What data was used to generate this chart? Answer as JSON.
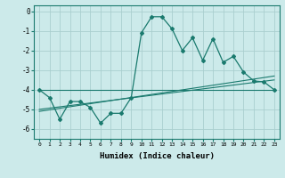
{
  "xlabel": "Humidex (Indice chaleur)",
  "x": [
    0,
    1,
    2,
    3,
    4,
    5,
    6,
    7,
    8,
    9,
    10,
    11,
    12,
    13,
    14,
    15,
    16,
    17,
    18,
    19,
    20,
    21,
    22,
    23
  ],
  "main_line": [
    -4.0,
    -4.4,
    -5.5,
    -4.6,
    -4.6,
    -4.9,
    -5.7,
    -5.2,
    -5.2,
    -4.4,
    -1.1,
    -0.28,
    -0.28,
    -0.9,
    -2.0,
    -1.35,
    -2.5,
    -1.4,
    -2.6,
    -2.3,
    -3.1,
    -3.55,
    -3.6,
    -4.0
  ],
  "trend1_x": [
    0,
    23
  ],
  "trend1_y": [
    -4.0,
    -4.0
  ],
  "trend2_x": [
    0,
    23
  ],
  "trend2_y": [
    -5.0,
    -3.5
  ],
  "trend3_x": [
    0,
    23
  ],
  "trend3_y": [
    -5.1,
    -3.3
  ],
  "line_color": "#1a7a6e",
  "bg_color": "#cceaea",
  "grid_color": "#aacfcf",
  "ylim": [
    -6.5,
    0.3
  ],
  "yticks": [
    0,
    -1,
    -2,
    -3,
    -4,
    -5,
    -6
  ],
  "xticks": [
    0,
    1,
    2,
    3,
    4,
    5,
    6,
    7,
    8,
    9,
    10,
    11,
    12,
    13,
    14,
    15,
    16,
    17,
    18,
    19,
    20,
    21,
    22,
    23
  ]
}
